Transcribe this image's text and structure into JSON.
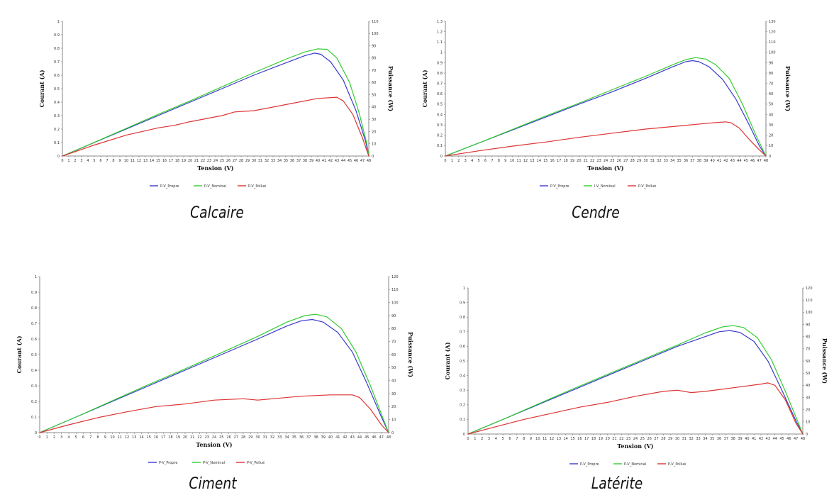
{
  "chart_data": [
    {
      "type": "line",
      "caption": "Calcaire",
      "xlabel": "Tension (V)",
      "ylabel_left": "Courant (A)",
      "ylabel_right": "Puissance (W)",
      "x": [
        0,
        48
      ],
      "xticks": [
        0,
        1,
        2,
        3,
        4,
        5,
        6,
        7,
        8,
        9,
        10,
        11,
        12,
        13,
        14,
        15,
        16,
        17,
        18,
        19,
        20,
        21,
        22,
        23,
        24,
        25,
        26,
        27,
        28,
        29,
        30,
        31,
        32,
        33,
        34,
        35,
        36,
        37,
        38,
        39,
        40,
        41,
        42,
        43,
        44,
        45,
        46,
        47,
        48
      ],
      "y_left_ticks": [
        "0",
        "0.1",
        "0.2",
        "0.3",
        "0.4",
        "0.5",
        "0.6",
        "0.7",
        "0.8",
        "0.9",
        "1"
      ],
      "y_right_ticks": [
        "0",
        "10",
        "20",
        "30",
        "40",
        "50",
        "60",
        "70",
        "80",
        "90",
        "100",
        "110"
      ],
      "ylim_right": [
        0,
        110
      ],
      "series": [
        {
          "name": "P-V_Propre",
          "color": "#3a3acc",
          "points": [
            [
              0,
              0
            ],
            [
              5,
              11
            ],
            [
              10,
              22
            ],
            [
              15,
              33
            ],
            [
              20,
              44
            ],
            [
              25,
              55
            ],
            [
              30,
              66
            ],
            [
              35,
              76
            ],
            [
              38,
              82
            ],
            [
              39.5,
              84
            ],
            [
              40.5,
              83
            ],
            [
              42,
              77
            ],
            [
              44,
              62
            ],
            [
              46,
              37
            ],
            [
              47.5,
              12
            ],
            [
              48,
              0
            ]
          ]
        },
        {
          "name": "P-V_Nominal",
          "color": "#33cc33",
          "points": [
            [
              0,
              0
            ],
            [
              5,
              11.2
            ],
            [
              10,
              22.5
            ],
            [
              15,
              34
            ],
            [
              20,
              45
            ],
            [
              25,
              56.5
            ],
            [
              30,
              68
            ],
            [
              35,
              79
            ],
            [
              38,
              85
            ],
            [
              40,
              87.5
            ],
            [
              41.5,
              87
            ],
            [
              43,
              80
            ],
            [
              45,
              60
            ],
            [
              46.5,
              35
            ],
            [
              47.7,
              10
            ],
            [
              48,
              0
            ]
          ]
        },
        {
          "name": "P-V_Pollué",
          "color": "#dd3333",
          "points": [
            [
              0,
              0
            ],
            [
              5,
              9
            ],
            [
              10,
              17
            ],
            [
              15,
              23
            ],
            [
              17.5,
              25
            ],
            [
              20,
              28
            ],
            [
              25,
              33
            ],
            [
              27,
              36
            ],
            [
              30,
              37
            ],
            [
              35,
              42
            ],
            [
              40,
              47
            ],
            [
              43,
              48
            ],
            [
              44,
              45
            ],
            [
              45.5,
              34
            ],
            [
              47,
              15
            ],
            [
              48,
              0
            ]
          ]
        }
      ]
    },
    {
      "type": "line",
      "caption": "Cendre",
      "xlabel": "Tension (V)",
      "ylabel_left": "Courant (A)",
      "ylabel_right": "Puissance (W)",
      "x": [
        0,
        48
      ],
      "xticks": [
        0,
        1,
        2,
        3,
        4,
        5,
        6,
        7,
        8,
        9,
        10,
        11,
        12,
        13,
        14,
        15,
        16,
        17,
        18,
        19,
        20,
        21,
        22,
        23,
        24,
        25,
        26,
        27,
        28,
        29,
        30,
        31,
        32,
        33,
        34,
        35,
        36,
        37,
        38,
        39,
        40,
        41,
        42,
        43,
        44,
        45,
        46,
        47,
        48
      ],
      "y_left_ticks": [
        "0",
        "0.1",
        "0.2",
        "0.3",
        "0.4",
        "0.5",
        "0.6",
        "0.7",
        "0.8",
        "0.9",
        "1",
        "1.1",
        "1.2",
        "1.3"
      ],
      "y_right_ticks": [
        "0",
        "10",
        "20",
        "30",
        "40",
        "50",
        "60",
        "70",
        "80",
        "90",
        "100",
        "110",
        "120",
        "130"
      ],
      "ylim_right": [
        0,
        130
      ],
      "series": [
        {
          "name": "P-V_Propre",
          "color": "#3a3acc",
          "points": [
            [
              0,
              0
            ],
            [
              5,
              12.5
            ],
            [
              10,
              25
            ],
            [
              15,
              37.5
            ],
            [
              20,
              50
            ],
            [
              25,
              62
            ],
            [
              30,
              75
            ],
            [
              34,
              86
            ],
            [
              36,
              91
            ],
            [
              37,
              92
            ],
            [
              38,
              91
            ],
            [
              39.5,
              86
            ],
            [
              41.5,
              74
            ],
            [
              43.5,
              55
            ],
            [
              45.5,
              30
            ],
            [
              47,
              10
            ],
            [
              48,
              0
            ]
          ]
        },
        {
          "name": "I-V_Nominal",
          "color": "#33cc33",
          "points": [
            [
              0,
              0
            ],
            [
              5,
              12.5
            ],
            [
              10,
              25.5
            ],
            [
              15,
              38.5
            ],
            [
              20,
              51
            ],
            [
              25,
              64
            ],
            [
              30,
              77
            ],
            [
              34,
              88
            ],
            [
              36,
              93
            ],
            [
              37.5,
              95
            ],
            [
              39,
              93.5
            ],
            [
              40.5,
              88
            ],
            [
              42.5,
              75
            ],
            [
              44.5,
              50
            ],
            [
              46.5,
              20
            ],
            [
              48,
              0
            ]
          ]
        },
        {
          "name": "P-V_Pollué",
          "color": "#dd3333",
          "points": [
            [
              0,
              0
            ],
            [
              5,
              5
            ],
            [
              10,
              9.5
            ],
            [
              15,
              13.5
            ],
            [
              20,
              18
            ],
            [
              25,
              22
            ],
            [
              30,
              26
            ],
            [
              35,
              29
            ],
            [
              40,
              32
            ],
            [
              42,
              33
            ],
            [
              42.8,
              32
            ],
            [
              44,
              27
            ],
            [
              45.5,
              16
            ],
            [
              47,
              6
            ],
            [
              48,
              0
            ]
          ]
        }
      ]
    },
    {
      "type": "line",
      "caption": "Ciment",
      "xlabel": "Tension (V)",
      "ylabel_left": "Courant (A)",
      "ylabel_right": "Puissance (W)",
      "x": [
        0,
        48
      ],
      "xticks": [
        0,
        1,
        2,
        3,
        4,
        5,
        6,
        7,
        8,
        9,
        10,
        11,
        12,
        13,
        14,
        15,
        16,
        17,
        18,
        19,
        20,
        21,
        22,
        23,
        24,
        25,
        26,
        27,
        28,
        29,
        30,
        31,
        32,
        33,
        34,
        35,
        36,
        37,
        38,
        39,
        40,
        41,
        42,
        43,
        44,
        45,
        46,
        47,
        48
      ],
      "y_left_ticks": [
        "0",
        "0.1",
        "0.2",
        "0.3",
        "0.4",
        "0.5",
        "0.6",
        "0.7",
        "0.8",
        "0.9",
        "1"
      ],
      "y_right_ticks": [
        "0",
        "10",
        "20",
        "30",
        "40",
        "50",
        "60",
        "70",
        "80",
        "90",
        "100",
        "110",
        "120"
      ],
      "ylim_right": [
        0,
        120
      ],
      "series": [
        {
          "name": "P-V_Propre",
          "color": "#3a3acc",
          "points": [
            [
              0,
              0
            ],
            [
              5,
              12
            ],
            [
              10,
              24
            ],
            [
              15,
              36
            ],
            [
              20,
              48
            ],
            [
              25,
              60
            ],
            [
              30,
              72
            ],
            [
              34,
              82
            ],
            [
              36,
              86
            ],
            [
              37.5,
              87
            ],
            [
              39,
              85
            ],
            [
              41,
              77
            ],
            [
              43,
              62
            ],
            [
              45,
              38
            ],
            [
              47,
              12
            ],
            [
              48,
              0
            ]
          ]
        },
        {
          "name": "P-V_Nominal",
          "color": "#33cc33",
          "points": [
            [
              0,
              0
            ],
            [
              5,
              12
            ],
            [
              10,
              24.5
            ],
            [
              15,
              37
            ],
            [
              20,
              49
            ],
            [
              25,
              61.5
            ],
            [
              30,
              74
            ],
            [
              34,
              85
            ],
            [
              36.5,
              90
            ],
            [
              38,
              91
            ],
            [
              39.5,
              89
            ],
            [
              41.5,
              80
            ],
            [
              43.5,
              62
            ],
            [
              45.5,
              36
            ],
            [
              47.3,
              10
            ],
            [
              48,
              0
            ]
          ]
        },
        {
          "name": "P-V_Pollué",
          "color": "#dd3333",
          "points": [
            [
              0,
              0
            ],
            [
              4,
              6
            ],
            [
              8,
              11.5
            ],
            [
              12,
              16
            ],
            [
              16,
              20
            ],
            [
              20,
              22
            ],
            [
              24,
              25
            ],
            [
              28,
              26
            ],
            [
              30,
              25
            ],
            [
              32,
              26
            ],
            [
              36,
              28
            ],
            [
              40,
              29
            ],
            [
              43,
              29
            ],
            [
              44,
              27
            ],
            [
              45.5,
              18
            ],
            [
              47,
              6
            ],
            [
              48,
              0
            ]
          ]
        }
      ]
    },
    {
      "type": "line",
      "caption": "Latérite",
      "xlabel": "Tension (V)",
      "ylabel_left": "Courant (A)",
      "ylabel_right": "Puissance (W)",
      "x": [
        0,
        48
      ],
      "xticks": [
        0,
        1,
        2,
        3,
        4,
        5,
        6,
        7,
        8,
        9,
        10,
        11,
        12,
        13,
        14,
        15,
        16,
        17,
        18,
        19,
        20,
        21,
        22,
        23,
        24,
        25,
        26,
        27,
        28,
        29,
        30,
        31,
        32,
        33,
        34,
        35,
        36,
        37,
        38,
        39,
        40,
        41,
        42,
        43,
        44,
        45,
        46,
        47,
        48
      ],
      "y_left_ticks": [
        "0",
        "0.1",
        "0.2",
        "0.3",
        "0.4",
        "0.5",
        "0.6",
        "0.7",
        "0.8",
        "0.9",
        "1"
      ],
      "y_right_ticks": [
        "0",
        "10",
        "20",
        "30",
        "40",
        "50",
        "60",
        "70",
        "80",
        "90",
        "100",
        "110",
        "120"
      ],
      "ylim_right": [
        0,
        120
      ],
      "series": [
        {
          "name": "P-V_Propre",
          "color": "#3a3acc",
          "points": [
            [
              0,
              0
            ],
            [
              5,
              12
            ],
            [
              10,
              24
            ],
            [
              15,
              36
            ],
            [
              20,
              48
            ],
            [
              25,
              60
            ],
            [
              30,
              72
            ],
            [
              34,
              80
            ],
            [
              36,
              84
            ],
            [
              37.5,
              85
            ],
            [
              39,
              83.5
            ],
            [
              41,
              76
            ],
            [
              43,
              60
            ],
            [
              45,
              36
            ],
            [
              47,
              11
            ],
            [
              48,
              0
            ]
          ]
        },
        {
          "name": "P-V_Nominal",
          "color": "#33cc33",
          "points": [
            [
              0,
              0
            ],
            [
              5,
              12
            ],
            [
              10,
              24.5
            ],
            [
              15,
              37
            ],
            [
              20,
              49
            ],
            [
              25,
              61
            ],
            [
              30,
              73
            ],
            [
              34,
              83
            ],
            [
              36.5,
              88
            ],
            [
              38,
              89
            ],
            [
              39.5,
              87.5
            ],
            [
              41.5,
              79
            ],
            [
              43.5,
              61
            ],
            [
              45.5,
              35
            ],
            [
              47.3,
              10
            ],
            [
              48,
              0
            ]
          ]
        },
        {
          "name": "P-V_Pollué",
          "color": "#dd3333",
          "points": [
            [
              0,
              0
            ],
            [
              4,
              6
            ],
            [
              8,
              12
            ],
            [
              12,
              17
            ],
            [
              16,
              22
            ],
            [
              20,
              26
            ],
            [
              24,
              31
            ],
            [
              28,
              35
            ],
            [
              30,
              36
            ],
            [
              32,
              34
            ],
            [
              34,
              35
            ],
            [
              38,
              38
            ],
            [
              42,
              41
            ],
            [
              43,
              42
            ],
            [
              44,
              40
            ],
            [
              45.5,
              28
            ],
            [
              47,
              9
            ],
            [
              48,
              0
            ]
          ]
        }
      ]
    }
  ]
}
